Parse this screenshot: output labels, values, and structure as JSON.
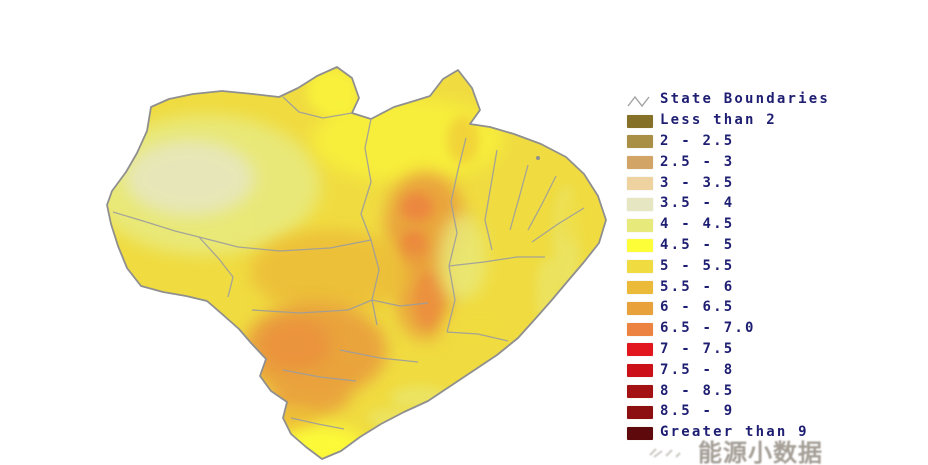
{
  "map": {
    "outline_color": "#8f8f8f",
    "state_line_color": "#9d9d9d",
    "background": "#ffffff",
    "island_dot_color": "#8f8f8f"
  },
  "legend": {
    "boundary_label": "State Boundaries",
    "boundary_line_color": "#a2a2a2",
    "text_color": "#1e1e72",
    "items": [
      {
        "label": "Less than 2",
        "color": "#857027"
      },
      {
        "label": "2 - 2.5",
        "color": "#a98f45"
      },
      {
        "label": "2.5 - 3",
        "color": "#d2a567"
      },
      {
        "label": "3 - 3.5",
        "color": "#eed2a0"
      },
      {
        "label": "3.5 - 4",
        "color": "#e6e6c3"
      },
      {
        "label": "4 - 4.5",
        "color": "#e8e97b"
      },
      {
        "label": "4.5 - 5",
        "color": "#fdfd38"
      },
      {
        "label": "5 - 5.5",
        "color": "#f0dc41"
      },
      {
        "label": "5.5 - 6",
        "color": "#ecba39"
      },
      {
        "label": "6 - 6.5",
        "color": "#e9a13c"
      },
      {
        "label": "6.5 - 7.0",
        "color": "#ec8340"
      },
      {
        "label": "7 - 7.5",
        "color": "#e2171e"
      },
      {
        "label": "7.5 - 8",
        "color": "#cb1117"
      },
      {
        "label": "8 - 8.5",
        "color": "#a31115"
      },
      {
        "label": "8.5 - 9",
        "color": "#8c0f12"
      },
      {
        "label": "Greater than 9",
        "color": "#5e0a0c"
      }
    ]
  },
  "watermark": {
    "text": "能源小数据"
  }
}
